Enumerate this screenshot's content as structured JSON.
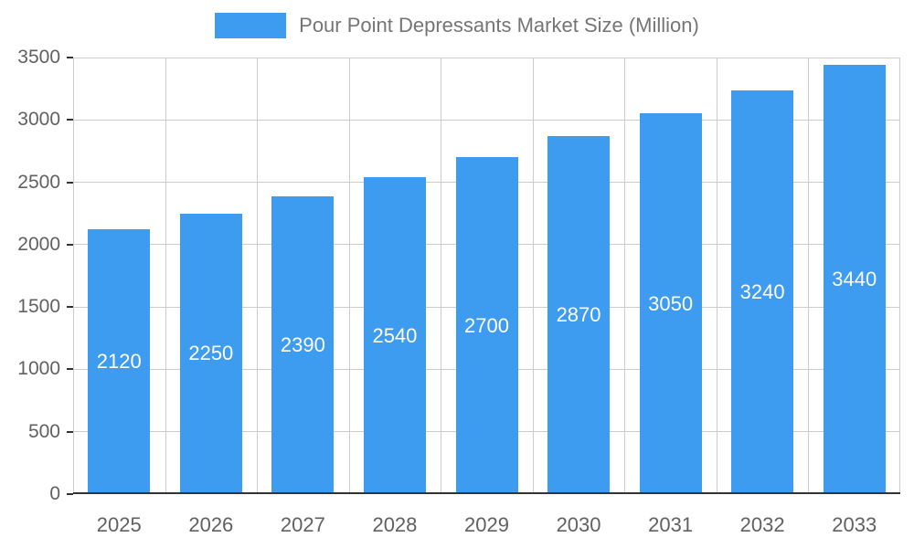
{
  "chart_data": {
    "type": "bar",
    "title": "Pour Point Depressants Market Size (Million)",
    "categories": [
      "2025",
      "2026",
      "2027",
      "2028",
      "2029",
      "2030",
      "2031",
      "2032",
      "2033"
    ],
    "values": [
      2120,
      2250,
      2390,
      2540,
      2700,
      2870,
      3050,
      3240,
      3440
    ],
    "xlabel": "",
    "ylabel": "",
    "ylim": [
      0,
      3500
    ],
    "yticks": [
      0,
      500,
      1000,
      1500,
      2000,
      2500,
      3000,
      3500
    ],
    "grid": true,
    "legend_position": "top",
    "bar_color": "#3D9BF0",
    "value_label_color": "#ffffff",
    "axis_text_color": "#616161",
    "legend_text_color": "#757575",
    "gridline_color": "#cccccc"
  }
}
